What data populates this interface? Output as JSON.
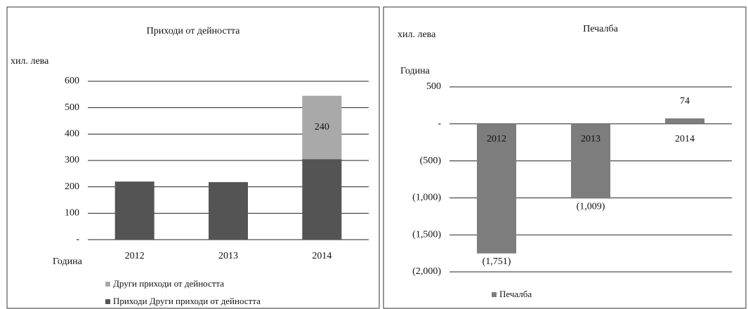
{
  "chart_data": [
    {
      "type": "bar",
      "stacked": true,
      "title": "Приходи от дейността",
      "y_label": "хил. лева",
      "x_label": "Година",
      "categories": [
        "2012",
        "2013",
        "2014"
      ],
      "series": [
        {
          "name": "Други приходи от дейността",
          "color": "#a9a9a9",
          "values": [
            null,
            null,
            240
          ]
        },
        {
          "name": "Приходи  Други приходи от дейността",
          "color": "#545454",
          "values": [
            220,
            218,
            305
          ]
        }
      ],
      "ylim": [
        0,
        600
      ],
      "yticks": [
        {
          "value": 0,
          "label": "-"
        },
        100,
        200,
        300,
        400,
        500,
        600
      ],
      "grid": true
    },
    {
      "type": "bar",
      "title": "Печалба",
      "y_label": "хил. лева",
      "x_label": "Година",
      "categories": [
        "2012",
        "2013",
        "2014"
      ],
      "series": [
        {
          "name": "Печалба",
          "color": "#7d7d7d",
          "values": [
            -1751,
            -1009,
            74
          ],
          "value_labels": [
            "(1,751)",
            "(1,009)",
            "74"
          ]
        }
      ],
      "ylim": [
        -2000,
        500
      ],
      "yticks": [
        {
          "value": -2000,
          "label": "(2,000)"
        },
        {
          "value": -1500,
          "label": "(1,500)"
        },
        {
          "value": -1000,
          "label": "(1,000)"
        },
        {
          "value": -500,
          "label": "(500)"
        },
        {
          "value": 0,
          "label": "-"
        },
        500
      ],
      "grid": true
    }
  ]
}
